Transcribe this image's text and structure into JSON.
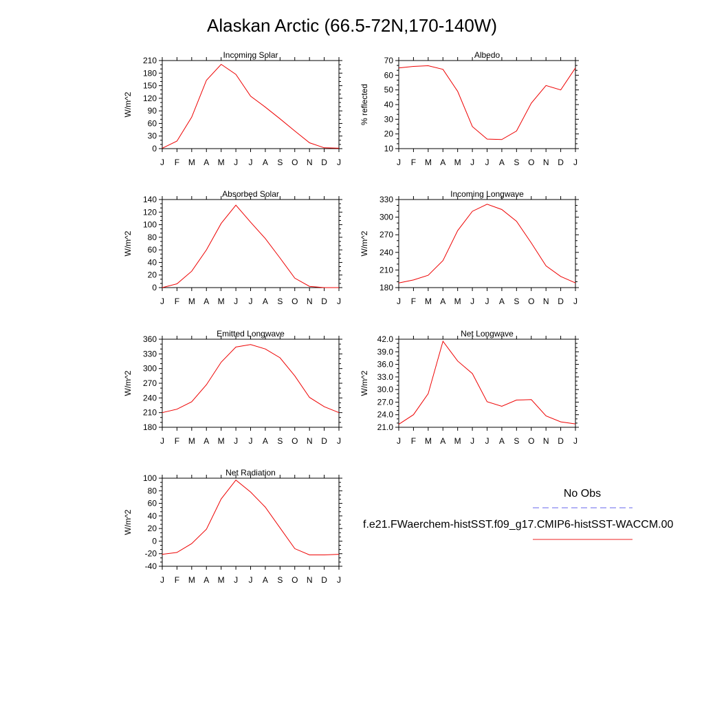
{
  "title": "Alaskan Arctic (66.5-72N,170-140W)",
  "months": [
    "J",
    "F",
    "M",
    "A",
    "M",
    "J",
    "J",
    "A",
    "S",
    "O",
    "N",
    "D",
    "J"
  ],
  "legend": {
    "obs_label": "No Obs",
    "model_label": "f.e21.FWaerchem-histSST.f09_g17.CMIP6-histSST-WACCM.00",
    "obs_color": "#6666ee",
    "model_color": "#ee2222"
  },
  "series_color": "#ee0000",
  "chart_data": [
    {
      "type": "line",
      "title": "Incoming Solar",
      "ylabel": "W/m^2",
      "ylim": [
        0,
        210
      ],
      "yticks": [
        0,
        30,
        60,
        90,
        120,
        150,
        180,
        210
      ],
      "ytick_labels": [
        "0",
        "30",
        "60",
        "90",
        "120",
        "150",
        "180",
        "210"
      ],
      "y": [
        1,
        18,
        75,
        163,
        201,
        177,
        125,
        99,
        71,
        42,
        14,
        2,
        1
      ]
    },
    {
      "type": "line",
      "title": "Albedo",
      "ylabel": "% reflected",
      "ylim": [
        10,
        70
      ],
      "yticks": [
        10,
        20,
        30,
        40,
        50,
        60,
        70
      ],
      "ytick_labels": [
        "10",
        "20",
        "30",
        "40",
        "50",
        "60",
        "70"
      ],
      "y": [
        65,
        66,
        66.5,
        64,
        49,
        25,
        16.5,
        16.2,
        22,
        41,
        53,
        50,
        65
      ]
    },
    {
      "type": "line",
      "title": "Absorbed Solar",
      "ylabel": "W/m^2",
      "ylim": [
        0,
        140
      ],
      "yticks": [
        0,
        20,
        40,
        60,
        80,
        100,
        120,
        140
      ],
      "ytick_labels": [
        "0",
        "20",
        "40",
        "60",
        "80",
        "100",
        "120",
        "140"
      ],
      "y": [
        0,
        6,
        26,
        60,
        102,
        131,
        104,
        78,
        47,
        15,
        2,
        0,
        0
      ]
    },
    {
      "type": "line",
      "title": "Incoming Longwave",
      "ylabel": "W/m^2",
      "ylim": [
        180,
        330
      ],
      "yticks": [
        180,
        210,
        240,
        270,
        300,
        330
      ],
      "ytick_labels": [
        "180",
        "210",
        "240",
        "270",
        "300",
        "330"
      ],
      "y": [
        188,
        193,
        201,
        226,
        277,
        310,
        322,
        313,
        293,
        256,
        217,
        199,
        188
      ]
    },
    {
      "type": "line",
      "title": "Emitted Longwave",
      "ylabel": "W/m^2",
      "ylim": [
        180,
        360
      ],
      "yticks": [
        180,
        210,
        240,
        270,
        300,
        330,
        360
      ],
      "ytick_labels": [
        "180",
        "210",
        "240",
        "270",
        "300",
        "330",
        "360"
      ],
      "y": [
        210,
        217,
        232,
        267,
        313,
        344,
        349,
        340,
        322,
        285,
        241,
        222,
        210
      ]
    },
    {
      "type": "line",
      "title": "Net Longwave",
      "ylabel": "W/m^2",
      "ylim": [
        21,
        42
      ],
      "yticks": [
        21,
        24,
        27,
        30,
        33,
        36,
        39,
        42
      ],
      "ytick_labels": [
        "21.0",
        "24.0",
        "27.0",
        "30.0",
        "33.0",
        "36.0",
        "39.0",
        "42.0"
      ],
      "y": [
        21.7,
        24.0,
        29.0,
        41.5,
        36.8,
        33.8,
        27.1,
        26.0,
        27.5,
        27.6,
        23.7,
        22.3,
        21.8
      ]
    },
    {
      "type": "line",
      "title": "Net Radiation",
      "ylabel": "W/m^2",
      "ylim": [
        -40,
        100
      ],
      "yticks": [
        -40,
        -20,
        0,
        20,
        40,
        60,
        80,
        100
      ],
      "ytick_labels": [
        "-40",
        "-20",
        "0",
        "20",
        "40",
        "60",
        "80",
        "100"
      ],
      "y": [
        -21,
        -18,
        -4,
        19,
        67,
        97,
        78,
        54,
        21,
        -12,
        -22,
        -22,
        -21
      ]
    }
  ]
}
